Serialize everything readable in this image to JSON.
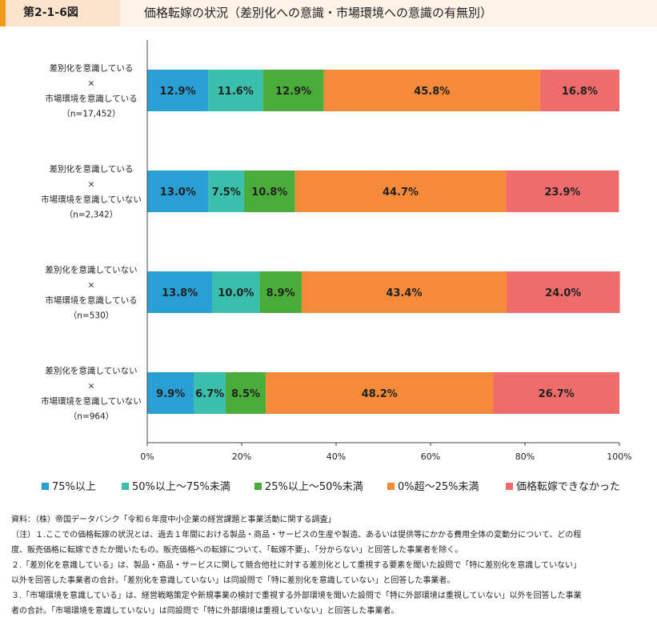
{
  "header": {
    "figure_number": "第2-1-6図",
    "title": "価格転嫁の状況（差別化への意識・市場環境への意識の有無別）"
  },
  "colors": {
    "s1": "#2a9fd6",
    "s2": "#3bbfad",
    "s3": "#4aad3a",
    "s4": "#f58a3b",
    "s5": "#f06b6b"
  },
  "chart_data": {
    "type": "bar",
    "orientation": "horizontal",
    "stacked": true,
    "percent": true,
    "categories": [
      [
        "差別化を意識している",
        "×",
        "市場環境を意識している",
        "（n=17,452）"
      ],
      [
        "差別化を意識している",
        "×",
        "市場環境を意識していない",
        "（n=2,342）"
      ],
      [
        "差別化を意識していない",
        "×",
        "市場環境を意識している",
        "（n=530）"
      ],
      [
        "差別化を意識していない",
        "×",
        "市場環境を意識していない",
        "（n=964）"
      ]
    ],
    "series": [
      {
        "name": "75%以上",
        "values": [
          12.9,
          13.0,
          13.8,
          9.9
        ],
        "labels": [
          "12.9%",
          "13.0%",
          "13.8%",
          "9.9%"
        ]
      },
      {
        "name": "50%以上～75%未満",
        "values": [
          11.6,
          7.5,
          10.0,
          6.7
        ],
        "labels": [
          "11.6%",
          "7.5%",
          "10.0%",
          "6.7%"
        ]
      },
      {
        "name": "25%以上～50%未満",
        "values": [
          12.9,
          10.8,
          8.9,
          8.5
        ],
        "labels": [
          "12.9%",
          "10.8%",
          "8.9%",
          "8.5%"
        ]
      },
      {
        "name": "0%超～25%未満",
        "values": [
          45.8,
          44.7,
          43.4,
          48.2
        ],
        "labels": [
          "45.8%",
          "44.7%",
          "43.4%",
          "48.2%"
        ]
      },
      {
        "name": "価格転嫁できなかった",
        "values": [
          16.8,
          23.9,
          24.0,
          26.7
        ],
        "labels": [
          "16.8%",
          "23.9%",
          "24.0%",
          "26.7%"
        ]
      }
    ],
    "xlim": [
      0,
      100
    ],
    "x_ticks": [
      "0%",
      "20%",
      "40%",
      "60%",
      "80%",
      "100%"
    ],
    "x_tick_values": [
      0,
      20,
      40,
      60,
      80,
      100
    ],
    "legend_position": "bottom"
  },
  "notes": [
    "資料：（株）帝国データバンク「令和６年度中小企業の経営課題と事業活動に関する調査」",
    "（注）１.ここでの価格転嫁の状況とは、過去１年間における製品・商品・サービスの生産や製造、あるいは提供等にかかる費用全体の変動分について、どの程",
    "度、販売価格に転嫁できたか聞いたもの。販売価格への転嫁について、「転嫁不要」、「分からない」と回答した事業者を除く。",
    "２.「差別化を意識している」は、製品・商品・サービスに関して競合他社に対する差別化として重視する要素を聞いた設問で「特に差別化を意識していない」",
    "以外を回答した事業者の合計。「差別化を意識していない」は同設問で「特に差別化を意識していない」と回答した事業者。",
    "３.「市場環境を意識している」は、経営戦略策定や新規事業の検討で重視する外部環境を聞いた設問で「特に外部環境は重視していない」以外を回答した事業",
    "者の合計。「市場環境を意識していない」は同設問で「特に外部環境は重視していない」と回答した事業者。"
  ]
}
